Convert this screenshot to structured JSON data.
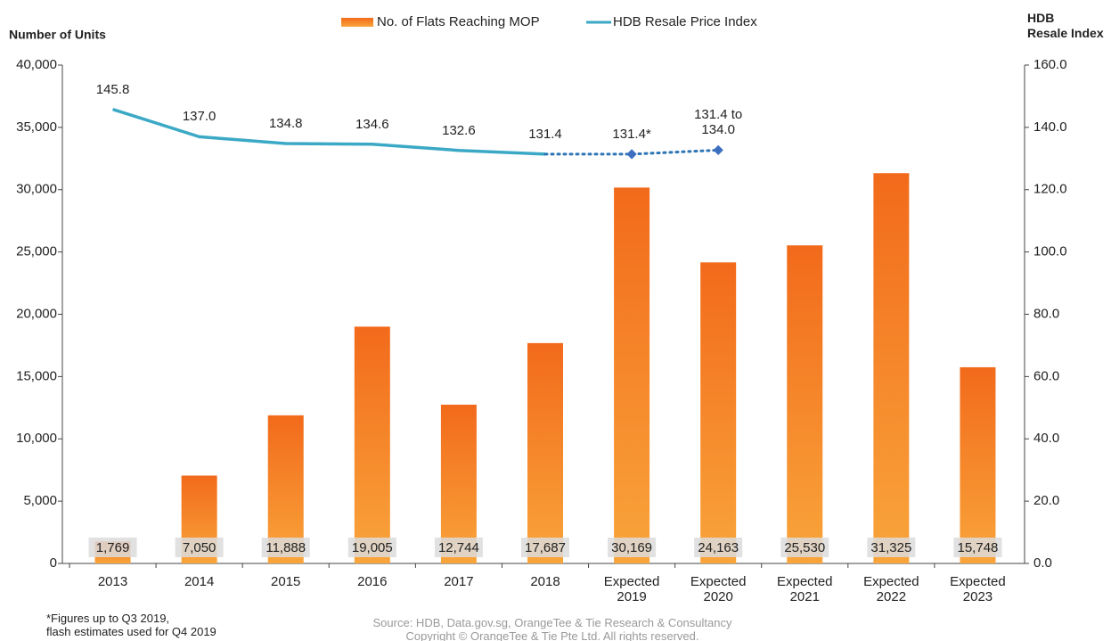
{
  "chart_data": {
    "type": "bar_line",
    "y_title": "Number of Units",
    "y2_title": "HDB\nResale Index",
    "categories": [
      "2013",
      "2014",
      "2015",
      "2016",
      "2017",
      "2018",
      "Expected\n2019",
      "Expected\n2020",
      "Expected\n2021",
      "Expected\n2022",
      "Expected\n2023"
    ],
    "series": [
      {
        "name": "No. of Flats Reaching MOP",
        "type": "bar",
        "axis": "y",
        "color": "#f47a20",
        "values": [
          1769,
          7050,
          11888,
          19005,
          12744,
          17687,
          30169,
          24163,
          25530,
          31325,
          15748
        ],
        "value_labels": [
          "1,769",
          "7,050",
          "11,888",
          "19,005",
          "12,744",
          "17,687",
          "30,169",
          "24,163",
          "25,530",
          "31,325",
          "15,748"
        ]
      },
      {
        "name": "HDB Resale Price Index",
        "type": "line",
        "axis": "y2",
        "color": "#3ba9c6",
        "projected_from": "2018",
        "projected_color": "#2e75b6",
        "values": [
          145.8,
          137.0,
          134.8,
          134.6,
          132.6,
          131.4,
          131.4,
          132.7,
          null,
          null,
          null
        ],
        "value_labels": [
          "145.8",
          "137.0",
          "134.8",
          "134.6",
          "132.6",
          "131.4",
          "131.4*",
          "131.4 to\n134.0",
          null,
          null,
          null
        ]
      }
    ],
    "ylim": [
      0,
      40000
    ],
    "yticks": [
      0,
      {
        "value": 5000,
        "label": "5,000"
      },
      {
        "value": 10000,
        "label": "10,000"
      },
      {
        "value": 15000,
        "label": "15,000"
      },
      {
        "value": 20000,
        "label": "20,000"
      },
      {
        "value": 25000,
        "label": "25,000"
      },
      {
        "value": 30000,
        "label": "30,000"
      },
      {
        "value": 35000,
        "label": "35,000"
      },
      {
        "value": 40000,
        "label": "40,000"
      }
    ],
    "y2lim": [
      0,
      160
    ],
    "y2ticks": [
      {
        "value": 0,
        "label": "0.0"
      },
      {
        "value": 20,
        "label": "20.0"
      },
      {
        "value": 40,
        "label": "40.0"
      },
      {
        "value": 60,
        "label": "60.0"
      },
      {
        "value": 80,
        "label": "80.0"
      },
      {
        "value": 100,
        "label": "100.0"
      },
      {
        "value": 120,
        "label": "120.0"
      },
      {
        "value": 140,
        "label": "140.0"
      },
      {
        "value": 160,
        "label": "160.0"
      }
    ],
    "legend": "top",
    "footnote": "*Figures up to Q3 2019,\n flash estimates used for Q4 2019",
    "source": "Source: HDB, Data.gov.sg, OrangeTee & Tie Research & Consultancy\nCopyright © OrangeTee & Tie Pte Ltd. All rights reserved."
  }
}
